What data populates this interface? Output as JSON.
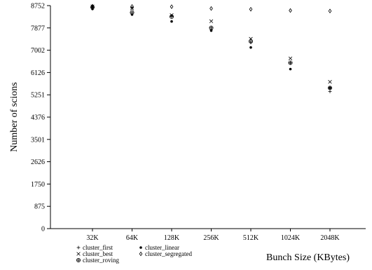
{
  "chart_data": {
    "type": "scatter",
    "title": "",
    "xlabel": "Bunch Size (KBytes)",
    "ylabel": "Number of scions",
    "categories": [
      "32K",
      "64K",
      "128K",
      "256K",
      "512K",
      "1024K",
      "2048K"
    ],
    "yticks": [
      "0",
      "875",
      "1750",
      "2626",
      "3501",
      "4376",
      "5251",
      "6126",
      "7002",
      "7877",
      "8752"
    ],
    "ylim": [
      0,
      8752
    ],
    "grid": false,
    "legend_position": "bottom-left",
    "series": [
      {
        "name": "cluster_first",
        "marker": "plus",
        "values": [
          8720,
          8660,
          8350,
          7820,
          7300,
          6500,
          5380
        ]
      },
      {
        "name": "cluster_best",
        "marker": "cross",
        "values": [
          8720,
          8640,
          8380,
          8140,
          7450,
          6680,
          5760
        ]
      },
      {
        "name": "cluster_roving",
        "marker": "circle-plus",
        "values": [
          8690,
          8480,
          8320,
          7880,
          7350,
          6510,
          5520
        ]
      },
      {
        "name": "cluster_linear",
        "marker": "dot",
        "values": [
          8620,
          8400,
          8130,
          7770,
          7110,
          6260,
          5520
        ]
      },
      {
        "name": "cluster_segregated",
        "marker": "diamond",
        "values": [
          8730,
          8720,
          8710,
          8640,
          8610,
          8560,
          8540
        ]
      }
    ]
  }
}
